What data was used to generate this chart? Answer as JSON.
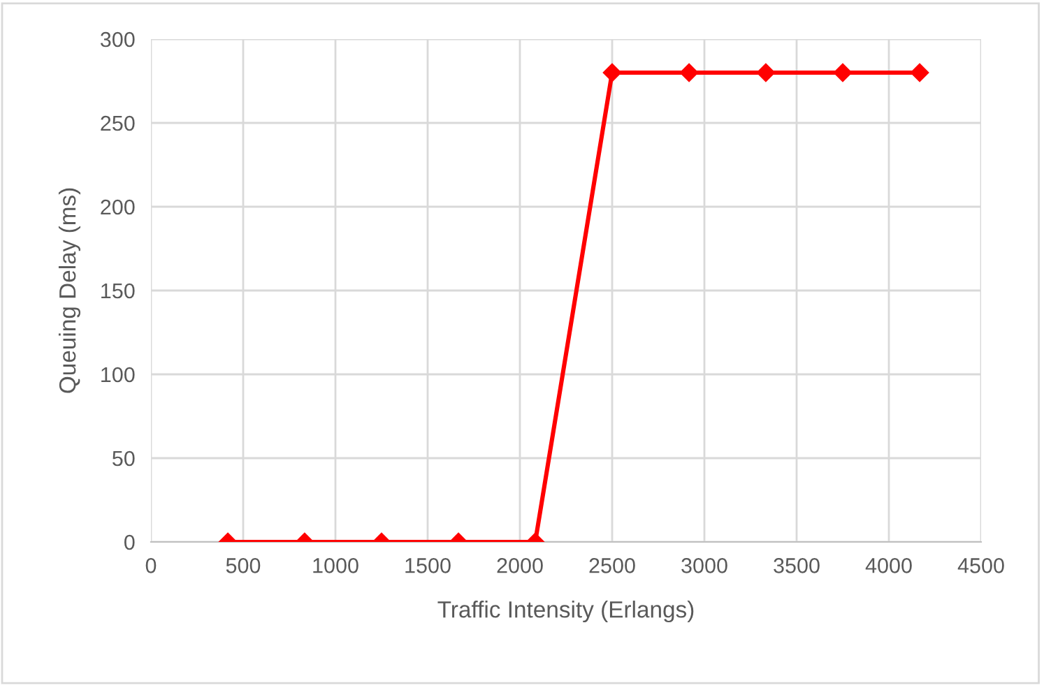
{
  "chart_data": {
    "type": "line",
    "xlabel": "Traffic Intensity (Erlangs)",
    "ylabel": "Queuing Delay (ms)",
    "x": [
      417,
      833,
      1250,
      1667,
      2083,
      2500,
      2917,
      3333,
      3750,
      4167
    ],
    "series": [
      {
        "color": "#ff0000",
        "values": [
          0,
          0,
          0,
          0,
          0,
          280,
          280,
          280,
          280,
          280
        ]
      }
    ],
    "xlim": [
      0,
      4500
    ],
    "xticks": [
      0,
      500,
      1000,
      1500,
      2000,
      2500,
      3000,
      3500,
      4000,
      4500
    ],
    "ylim": [
      0,
      300
    ],
    "yticks": [
      0,
      50,
      100,
      150,
      200,
      250,
      300
    ],
    "grid": true,
    "marker": "diamond",
    "line_style": "solid",
    "legend": false
  }
}
